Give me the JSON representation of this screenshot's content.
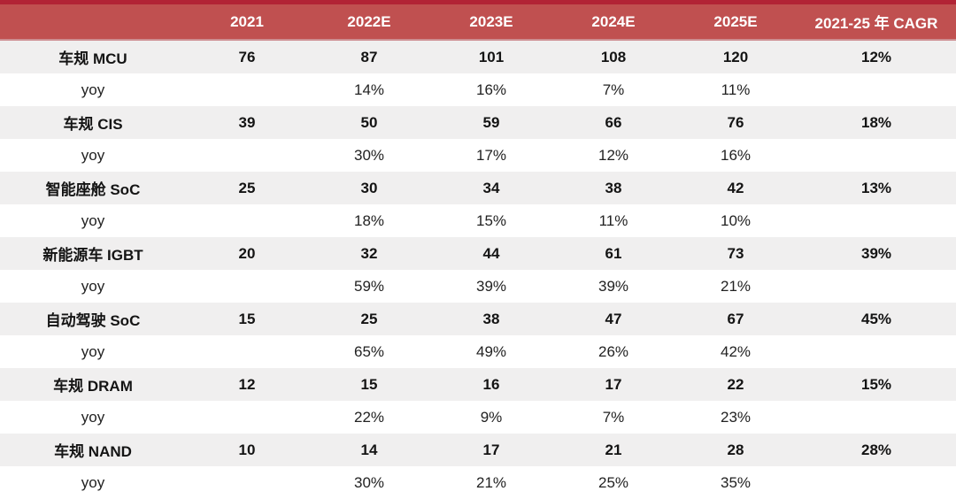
{
  "colors": {
    "top_stripe": "#b22335",
    "header_bg": "#c05050",
    "header_divider": "#cd8e91",
    "header_text": "#ffffff",
    "category_row_bg": "#f0efef",
    "yoy_row_bg": "#ffffff",
    "text": "#141414"
  },
  "chart_data": {
    "type": "table",
    "title": "",
    "columns": [
      "",
      "2021",
      "2022E",
      "2023E",
      "2024E",
      "2025E",
      "2021-25 年 CAGR"
    ],
    "rows": [
      {
        "type": "category",
        "label": "车规 MCU",
        "cells": [
          "76",
          "87",
          "101",
          "108",
          "120",
          "12%"
        ]
      },
      {
        "type": "yoy",
        "label": "yoy",
        "cells": [
          "",
          "14%",
          "16%",
          "7%",
          "11%",
          ""
        ]
      },
      {
        "type": "category",
        "label": "车规 CIS",
        "cells": [
          "39",
          "50",
          "59",
          "66",
          "76",
          "18%"
        ]
      },
      {
        "type": "yoy",
        "label": "yoy",
        "cells": [
          "",
          "30%",
          "17%",
          "12%",
          "16%",
          ""
        ]
      },
      {
        "type": "category",
        "label": "智能座舱 SoC",
        "cells": [
          "25",
          "30",
          "34",
          "38",
          "42",
          "13%"
        ]
      },
      {
        "type": "yoy",
        "label": "yoy",
        "cells": [
          "",
          "18%",
          "15%",
          "11%",
          "10%",
          ""
        ]
      },
      {
        "type": "category",
        "label": "新能源车 IGBT",
        "cells": [
          "20",
          "32",
          "44",
          "61",
          "73",
          "39%"
        ]
      },
      {
        "type": "yoy",
        "label": "yoy",
        "cells": [
          "",
          "59%",
          "39%",
          "39%",
          "21%",
          ""
        ]
      },
      {
        "type": "category",
        "label": "自动驾驶 SoC",
        "cells": [
          "15",
          "25",
          "38",
          "47",
          "67",
          "45%"
        ]
      },
      {
        "type": "yoy",
        "label": "yoy",
        "cells": [
          "",
          "65%",
          "49%",
          "26%",
          "42%",
          ""
        ]
      },
      {
        "type": "category",
        "label": "车规 DRAM",
        "cells": [
          "12",
          "15",
          "16",
          "17",
          "22",
          "15%"
        ]
      },
      {
        "type": "yoy",
        "label": "yoy",
        "cells": [
          "",
          "22%",
          "9%",
          "7%",
          "23%",
          ""
        ]
      },
      {
        "type": "category",
        "label": "车规 NAND",
        "cells": [
          "10",
          "14",
          "17",
          "21",
          "28",
          "28%"
        ]
      },
      {
        "type": "yoy",
        "label": "yoy",
        "cells": [
          "",
          "30%",
          "21%",
          "25%",
          "35%",
          ""
        ]
      }
    ]
  }
}
